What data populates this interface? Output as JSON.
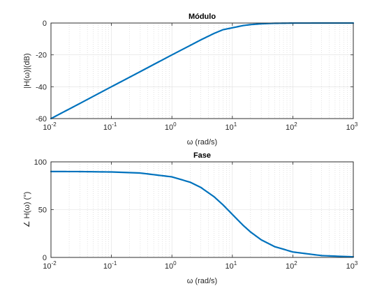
{
  "chart_data": [
    {
      "type": "line",
      "title": "Módulo",
      "xlabel": "ω (rad/s)",
      "ylabel": "|H(ω)|(dB)",
      "xscale": "log",
      "xlim": [
        0.01,
        1000
      ],
      "ylim": [
        -60,
        0
      ],
      "x_ticks": [
        {
          "base": "10",
          "exp": "-2"
        },
        {
          "base": "10",
          "exp": "-1"
        },
        {
          "base": "10",
          "exp": "0"
        },
        {
          "base": "10",
          "exp": "1"
        },
        {
          "base": "10",
          "exp": "2"
        },
        {
          "base": "10",
          "exp": "3"
        }
      ],
      "y_ticks": [
        "-60",
        "-40",
        "-20",
        "0"
      ],
      "y_tick_values": [
        -60,
        -40,
        -20,
        0
      ],
      "grid": "on",
      "series": [
        {
          "color": "#0072bd",
          "x": [
            0.01,
            0.03,
            0.1,
            0.3,
            1,
            2,
            3,
            5,
            7,
            10,
            15,
            20,
            30,
            50,
            100,
            300,
            1000
          ],
          "y": [
            -60,
            -50.5,
            -40,
            -30.5,
            -20,
            -14.1,
            -10.6,
            -6.5,
            -4.2,
            -3.0,
            -1.6,
            -1.0,
            -0.5,
            -0.17,
            -0.04,
            0,
            0
          ]
        }
      ]
    },
    {
      "type": "line",
      "title": "Fase",
      "xlabel": "ω (rad/s)",
      "ylabel": "∠ H(ω) (°)",
      "xscale": "log",
      "xlim": [
        0.01,
        1000
      ],
      "ylim": [
        0,
        100
      ],
      "x_ticks": [
        {
          "base": "10",
          "exp": "-2"
        },
        {
          "base": "10",
          "exp": "-1"
        },
        {
          "base": "10",
          "exp": "0"
        },
        {
          "base": "10",
          "exp": "1"
        },
        {
          "base": "10",
          "exp": "2"
        },
        {
          "base": "10",
          "exp": "3"
        }
      ],
      "y_ticks": [
        "0",
        "50",
        "100"
      ],
      "y_tick_values": [
        0,
        50,
        100
      ],
      "grid": "on",
      "series": [
        {
          "color": "#0072bd",
          "x": [
            0.01,
            0.03,
            0.1,
            0.3,
            1,
            2,
            3,
            5,
            7,
            10,
            15,
            20,
            30,
            50,
            100,
            300,
            1000
          ],
          "y": [
            89.9,
            89.8,
            89.4,
            88.3,
            84.3,
            78.7,
            73.3,
            63.4,
            55.0,
            45.0,
            33.7,
            26.6,
            18.4,
            11.3,
            5.7,
            1.9,
            0.6
          ]
        }
      ]
    }
  ]
}
